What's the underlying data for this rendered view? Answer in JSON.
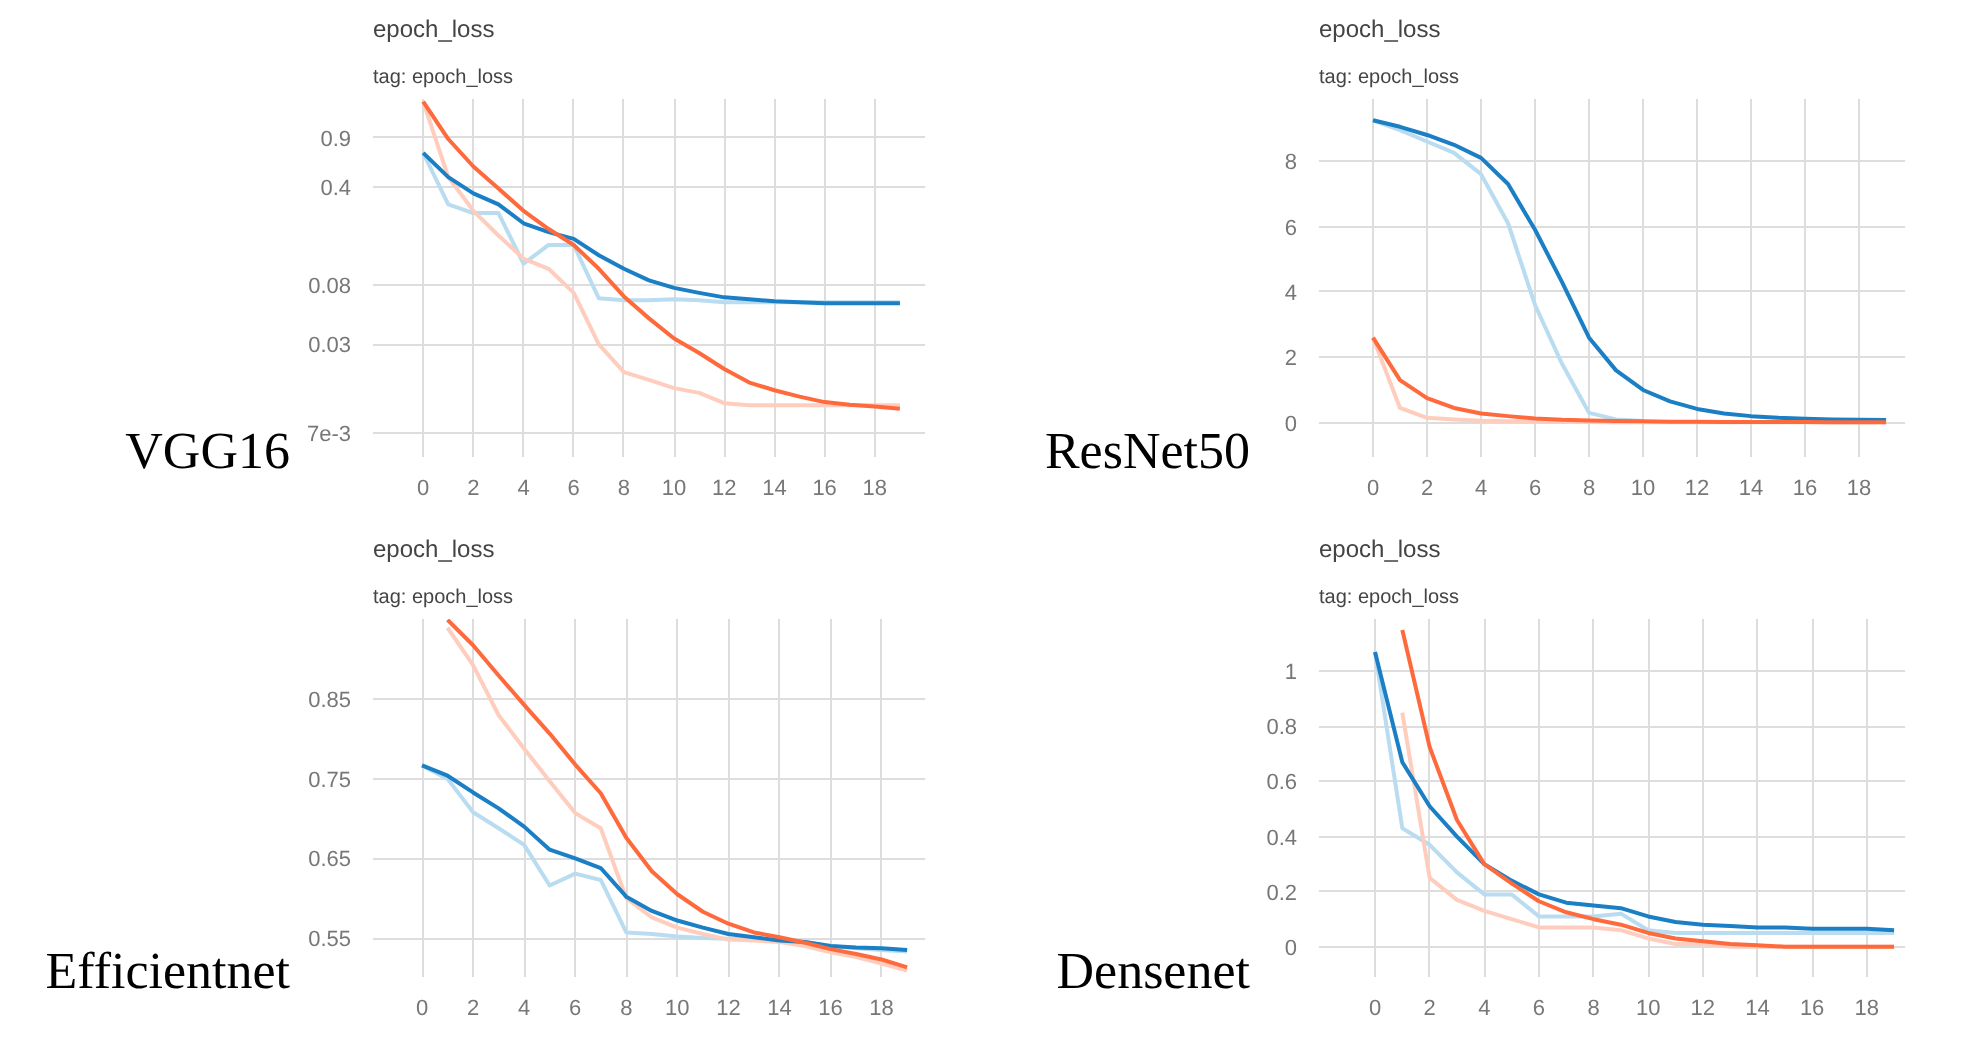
{
  "chart_data": [
    {
      "type": "line",
      "title": "epoch_loss",
      "subtitle": "tag: epoch_loss",
      "annotations": [
        "VGG16"
      ],
      "log": "y",
      "grid": true,
      "x": [
        0,
        1,
        2,
        3,
        4,
        5,
        6,
        7,
        8,
        9,
        10,
        11,
        12,
        13,
        14,
        15,
        16,
        17,
        18,
        19
      ],
      "xlim": [
        -2,
        20
      ],
      "ylim": [
        0.0047,
        1.7
      ],
      "xticks": [
        0,
        2,
        4,
        6,
        8,
        10,
        12,
        14,
        16,
        18
      ],
      "yticks": [
        0.9,
        0.4,
        0.08,
        0.03,
        {
          "value": 0.007,
          "label": "7e-3"
        }
      ],
      "series": [
        {
          "color": "#b9dcf0",
          "values": [
            0.7,
            0.3,
            0.26,
            0.26,
            0.113,
            0.154,
            0.154,
            0.064,
            0.062,
            0.062,
            0.063,
            0.062,
            0.06,
            0.06,
            0.06,
            0.06,
            0.06,
            0.06,
            0.06,
            0.06
          ]
        },
        {
          "color": "#ffcdbd",
          "values": [
            1.63,
            0.47,
            0.27,
            0.18,
            0.123,
            0.104,
            0.07,
            0.03,
            0.019,
            0.0167,
            0.0146,
            0.0135,
            0.0114,
            0.011,
            0.011,
            0.011,
            0.011,
            0.011,
            0.011,
            0.011
          ]
        },
        {
          "color": "#1a7fc4",
          "values": [
            0.7,
            0.47,
            0.36,
            0.3,
            0.22,
            0.19,
            0.17,
            0.13,
            0.104,
            0.086,
            0.076,
            0.07,
            0.065,
            0.063,
            0.061,
            0.06,
            0.059,
            0.059,
            0.059,
            0.059
          ]
        },
        {
          "color": "#ff6a3d",
          "values": [
            1.63,
            0.88,
            0.56,
            0.39,
            0.27,
            0.2,
            0.154,
            0.104,
            0.066,
            0.046,
            0.033,
            0.026,
            0.02,
            0.016,
            0.0141,
            0.0127,
            0.0116,
            0.0111,
            0.0108,
            0.0104
          ]
        }
      ]
    },
    {
      "type": "line",
      "title": "epoch_loss",
      "subtitle": "tag: epoch_loss",
      "annotations": [
        "ResNet50"
      ],
      "grid": true,
      "x": [
        0,
        1,
        2,
        3,
        4,
        5,
        6,
        7,
        8,
        9,
        10,
        11,
        12,
        13,
        14,
        15,
        16,
        17,
        18,
        19
      ],
      "xlim": [
        -2,
        19.7
      ],
      "ylim": [
        -1.05,
        9.9
      ],
      "xticks": [
        0,
        2,
        4,
        6,
        8,
        10,
        12,
        14,
        16,
        18
      ],
      "yticks": [
        0,
        2,
        4,
        6,
        8
      ],
      "series": [
        {
          "color": "#b9dcf0",
          "values": [
            9.25,
            8.95,
            8.6,
            8.25,
            7.6,
            6.1,
            3.6,
            1.8,
            0.3,
            0.1,
            0.05,
            null,
            null,
            null,
            null,
            null,
            null,
            null,
            null,
            null
          ]
        },
        {
          "color": "#ffcdbd",
          "values": [
            2.6,
            0.45,
            0.15,
            0.1,
            0.06,
            0.04,
            0.03,
            0.02,
            0.02,
            0.01,
            0.01,
            0.01,
            0.01,
            0.01,
            0.01,
            0.01,
            0.01,
            0.01,
            0.01,
            0.01
          ]
        },
        {
          "color": "#1a7fc4",
          "values": [
            9.25,
            9.05,
            8.8,
            8.5,
            8.1,
            7.3,
            5.9,
            4.3,
            2.6,
            1.6,
            1.0,
            0.65,
            0.42,
            0.28,
            0.2,
            0.15,
            0.12,
            0.1,
            0.09,
            0.08
          ]
        },
        {
          "color": "#ff6a3d",
          "values": [
            2.6,
            1.3,
            0.75,
            0.45,
            0.28,
            0.2,
            0.13,
            0.09,
            0.07,
            0.05,
            0.04,
            0.03,
            0.03,
            0.02,
            0.02,
            0.02,
            0.02,
            0.01,
            0.01,
            0.01
          ]
        }
      ]
    },
    {
      "type": "line",
      "title": "epoch_loss",
      "subtitle": "tag: epoch_loss",
      "annotations": [
        "Efficientnet"
      ],
      "grid": true,
      "x": [
        0,
        1,
        2,
        3,
        4,
        5,
        6,
        7,
        8,
        9,
        10,
        11,
        12,
        13,
        14,
        15,
        16,
        17,
        18,
        19
      ],
      "xlim": [
        -1.92,
        19.7
      ],
      "ylim": [
        0.501,
        0.951
      ],
      "xticks": [
        0,
        2,
        4,
        6,
        8,
        10,
        12,
        14,
        16,
        18
      ],
      "yticks": [
        0.55,
        0.65,
        0.75,
        0.85
      ],
      "series": [
        {
          "color": "#b9dcf0",
          "values": [
            0.767,
            0.75,
            0.708,
            0.688,
            0.667,
            0.616,
            0.631,
            0.623,
            0.557,
            0.555,
            0.552,
            0.55,
            0.549,
            0.548,
            0.547,
            0.545,
            0.54,
            0.537,
            0.535,
            0.533
          ]
        },
        {
          "color": "#ffcdbd",
          "values": [
            null,
            0.94,
            0.893,
            0.83,
            0.788,
            0.747,
            0.707,
            0.688,
            0.6,
            0.576,
            0.563,
            0.555,
            0.548,
            0.547,
            0.545,
            0.54,
            0.532,
            0.526,
            0.518,
            0.509
          ]
        },
        {
          "color": "#1a7fc4",
          "values": [
            0.767,
            0.754,
            0.733,
            0.713,
            0.69,
            0.661,
            0.65,
            0.638,
            0.602,
            0.584,
            0.572,
            0.563,
            0.555,
            0.551,
            0.547,
            0.545,
            0.54,
            0.538,
            0.537,
            0.535
          ]
        },
        {
          "color": "#ff6a3d",
          "values": [
            null,
            0.95,
            0.918,
            0.88,
            0.843,
            0.807,
            0.768,
            0.732,
            0.676,
            0.634,
            0.605,
            0.583,
            0.568,
            0.557,
            0.551,
            0.544,
            0.536,
            0.53,
            0.523,
            0.513
          ]
        }
      ]
    },
    {
      "type": "line",
      "title": "epoch_loss",
      "subtitle": "tag: epoch_loss",
      "annotations": [
        "Densenet"
      ],
      "grid": true,
      "x": [
        0,
        1,
        2,
        3,
        4,
        5,
        6,
        7,
        8,
        9,
        10,
        11,
        12,
        13,
        14,
        15,
        16,
        17,
        18,
        19
      ],
      "xlim": [
        -2.05,
        19.4
      ],
      "ylim": [
        -0.11,
        1.19
      ],
      "xticks": [
        0,
        2,
        4,
        6,
        8,
        10,
        12,
        14,
        16,
        18
      ],
      "yticks": [
        0,
        0.2,
        0.4,
        0.6,
        0.8,
        1
      ],
      "series": [
        {
          "color": "#b9dcf0",
          "values": [
            1.07,
            0.43,
            0.37,
            0.27,
            0.19,
            0.19,
            0.11,
            0.11,
            0.11,
            0.12,
            0.06,
            0.05,
            0.05,
            0.05,
            0.05,
            0.05,
            0.05,
            0.05,
            0.05,
            0.05
          ]
        },
        {
          "color": "#ffcdbd",
          "values": [
            null,
            0.85,
            0.25,
            0.17,
            0.13,
            0.1,
            0.07,
            0.07,
            0.07,
            0.06,
            0.03,
            0.01,
            0.01,
            0,
            0,
            0,
            0,
            0,
            0,
            0
          ]
        },
        {
          "color": "#1a7fc4",
          "values": [
            1.07,
            0.67,
            0.51,
            0.4,
            0.3,
            0.24,
            0.19,
            0.16,
            0.15,
            0.14,
            0.11,
            0.09,
            0.08,
            0.075,
            0.07,
            0.07,
            0.065,
            0.065,
            0.065,
            0.06
          ]
        },
        {
          "color": "#ff6a3d",
          "values": [
            null,
            1.15,
            0.725,
            0.46,
            0.3,
            0.23,
            0.165,
            0.125,
            0.1,
            0.08,
            0.05,
            0.03,
            0.02,
            0.01,
            0.005,
            0,
            0,
            0,
            0,
            0
          ]
        }
      ]
    }
  ]
}
